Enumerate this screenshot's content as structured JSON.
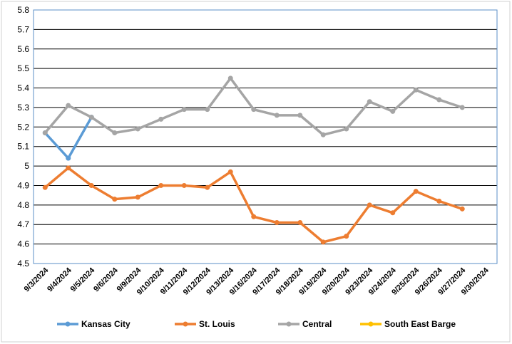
{
  "chart_data": {
    "type": "line",
    "categories": [
      "9/3/2024",
      "9/4/2024",
      "9/5/2024",
      "9/6/2024",
      "9/9/2024",
      "9/10/2024",
      "9/11/2024",
      "9/12/2024",
      "9/13/2024",
      "9/16/2024",
      "9/17/2024",
      "9/18/2024",
      "9/19/2024",
      "9/20/2024",
      "9/23/2024",
      "9/24/2024",
      "9/25/2024",
      "9/26/2024",
      "9/27/2024",
      "9/30/2024"
    ],
    "y_ticks": [
      "4.5",
      "4.6",
      "4.7",
      "4.8",
      "4.9",
      "5",
      "5.1",
      "5.2",
      "5.3",
      "5.4",
      "5.5",
      "5.6",
      "5.7",
      "5.8"
    ],
    "ylim": [
      4.5,
      5.8
    ],
    "grid": true,
    "legend_position": "bottom",
    "series": [
      {
        "name": "Kansas City",
        "color": "#5b9bd5",
        "values": [
          5.17,
          5.04,
          5.25,
          null,
          null,
          null,
          null,
          null,
          null,
          null,
          null,
          null,
          null,
          null,
          null,
          null,
          null,
          null,
          null,
          null
        ]
      },
      {
        "name": "St. Louis",
        "color": "#ed7d31",
        "values": [
          4.89,
          4.99,
          4.9,
          4.83,
          4.84,
          4.9,
          4.9,
          4.89,
          4.97,
          4.74,
          4.71,
          4.71,
          4.61,
          4.64,
          4.8,
          4.76,
          4.87,
          4.82,
          4.78,
          null
        ]
      },
      {
        "name": "Central",
        "color": "#a5a5a5",
        "values": [
          5.17,
          5.31,
          5.25,
          5.17,
          5.19,
          5.24,
          5.29,
          5.29,
          5.45,
          5.29,
          5.26,
          5.26,
          5.16,
          5.19,
          5.33,
          5.28,
          5.39,
          5.34,
          5.3,
          null
        ]
      },
      {
        "name": "South East Barge",
        "color": "#ffc000",
        "values": [
          null,
          null,
          null,
          null,
          null,
          null,
          null,
          null,
          null,
          null,
          null,
          null,
          null,
          null,
          null,
          null,
          null,
          null,
          null,
          null
        ]
      }
    ]
  }
}
